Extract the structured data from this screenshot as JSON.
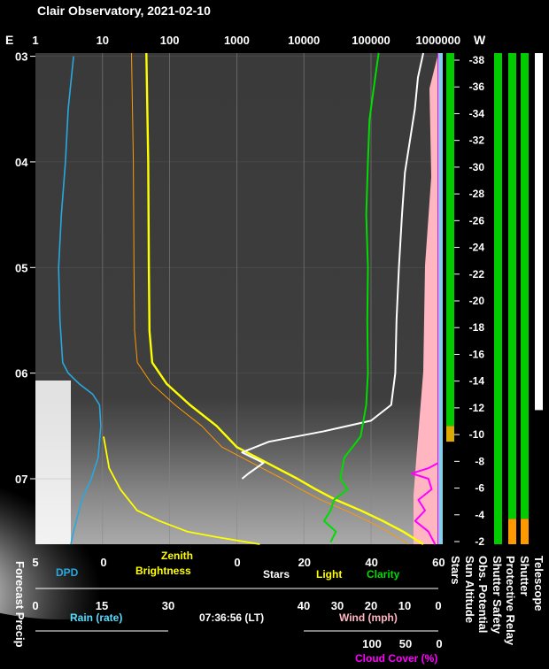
{
  "title": "Clair Observatory, 2021-02-10",
  "colors": {
    "background": "#000000",
    "dpd": "#29a8e0",
    "zenith": "#ffff00",
    "zenith_thin": "#ff9900",
    "stars": "#ffffff",
    "clarity": "#00dd00",
    "cloud": "#ff00ff",
    "wind": "#ffb6c1",
    "rain": "#55ddff",
    "green_bar": "#00cc00",
    "orange_bar": "#ff9900",
    "amber_bar": "#ddaa00",
    "rain_col": "#87ceeb"
  },
  "labels": {
    "e_label": "E",
    "w_label": "W",
    "dpd": "DPD",
    "zenith_line1": "Zenith",
    "zenith_line2": "Brightness",
    "stars": "Stars",
    "light": "Light",
    "clarity": "Clarity",
    "rain": "Rain (rate)",
    "time": "07:36:56 (LT)",
    "wind": "Wind (mph)",
    "cloud_cover": "Cloud Cover (%)",
    "forecast_precip": "Forecast Precip",
    "vertical": [
      "Stars",
      "Sun Altitude",
      "Obs. Potential",
      "Shutter Safety",
      "Protective Relay",
      "Shutter",
      "Telescope"
    ]
  },
  "chart_data": {
    "type": "line",
    "top_axis": {
      "scale": "log",
      "ticks": [
        "1",
        "10",
        "100",
        "1000",
        "10000",
        "100000",
        "1000000"
      ]
    },
    "time_axis": {
      "label_ticks": [
        "03",
        "04",
        "05",
        "06",
        "07"
      ],
      "range_hours": [
        2.97,
        7.62
      ]
    },
    "dpd_axis": {
      "ticks": [
        "5",
        "0"
      ]
    },
    "light_axis": {
      "ticks": [
        "0",
        "20",
        "40",
        "60"
      ]
    },
    "rain_axis": {
      "ticks": [
        "0",
        "15",
        "30"
      ]
    },
    "wind_axis": {
      "ticks": [
        "40",
        "30",
        "20",
        "10",
        "0"
      ]
    },
    "cloud_axis": {
      "ticks": [
        "100",
        "50",
        "0"
      ]
    },
    "sun_altitude_axis": {
      "ticks": [
        "-38",
        "-36",
        "-34",
        "-32",
        "-30",
        "-28",
        "-26",
        "-24",
        "-22",
        "-20",
        "-18",
        "-16",
        "-14",
        "-12",
        "-10",
        "-8",
        "-6",
        "-4",
        "-2"
      ]
    },
    "series": [
      {
        "name": "DPD",
        "axis": "dpd",
        "points": [
          [
            3.0,
            2.2
          ],
          [
            3.5,
            2.6
          ],
          [
            4.0,
            2.8
          ],
          [
            4.5,
            3.1
          ],
          [
            5.0,
            3.3
          ],
          [
            5.5,
            3.2
          ],
          [
            5.9,
            3.0
          ],
          [
            6.0,
            2.6
          ],
          [
            6.1,
            1.8
          ],
          [
            6.2,
            0.8
          ],
          [
            6.3,
            0.3
          ],
          [
            6.5,
            0.2
          ],
          [
            6.8,
            0.4
          ],
          [
            7.0,
            0.9
          ],
          [
            7.2,
            1.6
          ],
          [
            7.5,
            2.2
          ],
          [
            7.62,
            2.4
          ]
        ]
      },
      {
        "name": "Zenith Brightness",
        "axis": "top_log",
        "points": [
          [
            2.97,
            45
          ],
          [
            4.0,
            48
          ],
          [
            5.0,
            49
          ],
          [
            5.6,
            50
          ],
          [
            5.9,
            55
          ],
          [
            6.1,
            90
          ],
          [
            6.3,
            200
          ],
          [
            6.5,
            500
          ],
          [
            6.7,
            1000
          ],
          [
            6.8,
            2000
          ],
          [
            6.9,
            4000
          ],
          [
            7.0,
            8000
          ],
          [
            7.1,
            15000
          ],
          [
            7.2,
            30000
          ],
          [
            7.3,
            70000
          ],
          [
            7.4,
            150000
          ],
          [
            7.5,
            300000
          ],
          [
            7.62,
            600000
          ]
        ]
      },
      {
        "name": "Light",
        "axis": "light",
        "points": [
          [
            6.6,
            0
          ],
          [
            6.9,
            1
          ],
          [
            7.1,
            3
          ],
          [
            7.3,
            6
          ],
          [
            7.4,
            10
          ],
          [
            7.5,
            15
          ],
          [
            7.55,
            20
          ],
          [
            7.62,
            28
          ]
        ]
      },
      {
        "name": "Stars",
        "axis": "top_log",
        "points": [
          [
            2.97,
            600000
          ],
          [
            3.2,
            500000
          ],
          [
            3.5,
            450000
          ],
          [
            3.8,
            380000
          ],
          [
            4.1,
            320000
          ],
          [
            4.5,
            290000
          ],
          [
            5.0,
            260000
          ],
          [
            5.5,
            240000
          ],
          [
            6.0,
            230000
          ],
          [
            6.3,
            200000
          ],
          [
            6.45,
            100000
          ],
          [
            6.55,
            20000
          ],
          [
            6.65,
            3000
          ],
          [
            6.75,
            1200
          ],
          [
            6.85,
            2500
          ],
          [
            6.95,
            1500
          ],
          [
            7.0,
            1200
          ]
        ]
      },
      {
        "name": "Clarity",
        "axis": "top_log",
        "points": [
          [
            2.97,
            130000
          ],
          [
            3.3,
            110000
          ],
          [
            3.6,
            95000
          ],
          [
            4.0,
            90000
          ],
          [
            4.5,
            85000
          ],
          [
            5.0,
            90000
          ],
          [
            5.5,
            88000
          ],
          [
            6.0,
            90000
          ],
          [
            6.3,
            85000
          ],
          [
            6.6,
            70000
          ],
          [
            6.8,
            40000
          ],
          [
            7.0,
            35000
          ],
          [
            7.1,
            45000
          ],
          [
            7.2,
            28000
          ],
          [
            7.3,
            25000
          ],
          [
            7.4,
            20000
          ],
          [
            7.5,
            30000
          ],
          [
            7.6,
            25000
          ]
        ]
      },
      {
        "name": "Cloud Cover",
        "axis": "cloud",
        "points": [
          [
            6.85,
            0
          ],
          [
            6.9,
            15
          ],
          [
            6.95,
            40
          ],
          [
            7.0,
            15
          ],
          [
            7.1,
            10
          ],
          [
            7.2,
            30
          ],
          [
            7.3,
            20
          ],
          [
            7.4,
            35
          ],
          [
            7.5,
            15
          ],
          [
            7.62,
            5
          ]
        ]
      }
    ],
    "status_bars": [
      {
        "name": "Stars",
        "segments": [
          [
            "green",
            2.97,
            6.5
          ],
          [
            "amber",
            6.5,
            6.65
          ],
          [
            "black",
            6.65,
            7.62
          ]
        ]
      },
      {
        "name": "Obs. Potential",
        "segments": [
          [
            "green",
            2.97,
            7.62
          ]
        ]
      },
      {
        "name": "Shutter Safety",
        "segments": [
          [
            "green",
            2.97,
            7.38
          ],
          [
            "orange",
            7.38,
            7.62
          ]
        ]
      },
      {
        "name": "Protective Relay",
        "segments": [
          [
            "green",
            2.97,
            7.38
          ],
          [
            "orange",
            7.38,
            7.62
          ]
        ]
      },
      {
        "name": "Shutter",
        "segments": [
          [
            "white",
            2.97,
            6.35
          ]
        ]
      }
    ]
  }
}
